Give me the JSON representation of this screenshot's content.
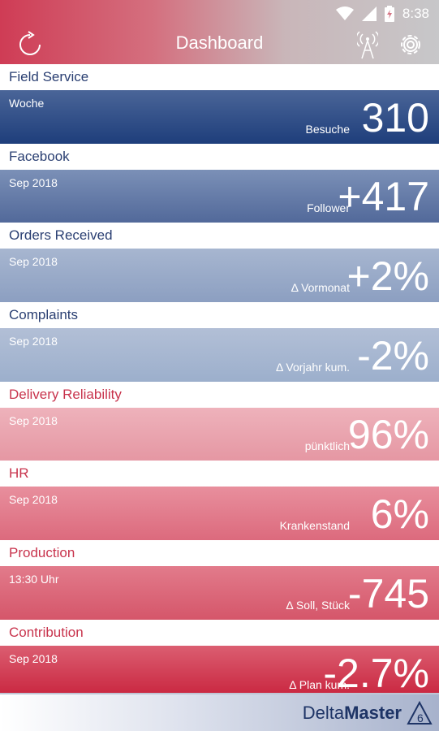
{
  "status_bar": {
    "time": "8:38",
    "icons": [
      "wifi-icon",
      "signal-icon",
      "battery-icon"
    ]
  },
  "app_bar": {
    "title": "Dashboard",
    "icons": [
      "refresh-icon",
      "antenna-icon",
      "gear-icon"
    ]
  },
  "tiles": [
    {
      "title": "Field Service",
      "period": "Woche",
      "label": "Besuche",
      "value": "310",
      "color": "#1e3e7b"
    },
    {
      "title": "Facebook",
      "period": "Sep 2018",
      "label": "Follower",
      "value": "+417",
      "color": "#5a73a3"
    },
    {
      "title": "Orders Received",
      "period": "Sep 2018",
      "label": "Δ Vormonat",
      "value": "+2%",
      "color": "#8ea2c3"
    },
    {
      "title": "Complaints",
      "period": "Sep 2018",
      "label": "Δ Vorjahr kum.",
      "value": "-2%",
      "color": "#9eb0cc"
    },
    {
      "title": "Delivery Reliability",
      "period": "Sep 2018",
      "label": "pünktlich",
      "value": "96%",
      "color": "#eaa2ad"
    },
    {
      "title": "HR",
      "period": "Sep 2018",
      "label": "Krankenstand",
      "value": "6%",
      "color": "#e07b8b"
    },
    {
      "title": "Production",
      "period": "13:30 Uhr",
      "label": "Δ Soll, Stück",
      "value": "-745",
      "color": "#d95a6d"
    },
    {
      "title": "Contribution",
      "period": "Sep 2018",
      "label": "Δ Plan kum.",
      "value": "-2.7%",
      "color": "#cf2e46"
    }
  ],
  "footer": {
    "brand_part1": "Delta",
    "brand_part2": "Master",
    "brand_version": "6"
  }
}
